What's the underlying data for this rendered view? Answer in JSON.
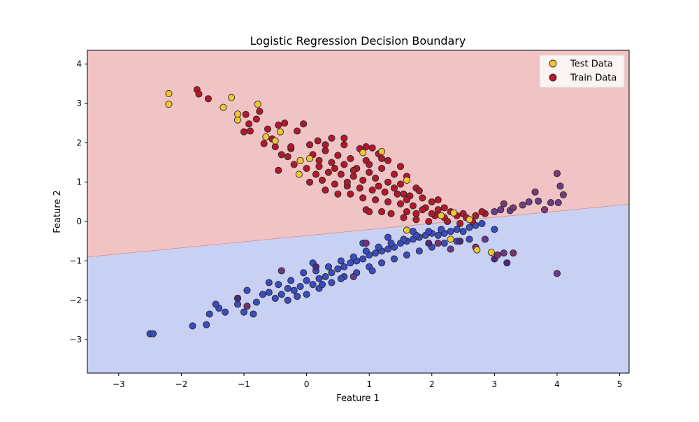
{
  "chart_data": {
    "type": "scatter",
    "title": "Logistic Regression Decision Boundary",
    "xlabel": "Feature 1",
    "ylabel": "Feature 2",
    "xlim": [
      -3.5,
      5.15
    ],
    "ylim": [
      -3.85,
      4.35
    ],
    "xticks": [
      -3,
      -2,
      -1,
      0,
      1,
      2,
      3,
      4,
      5
    ],
    "yticks": [
      -3,
      -2,
      -1,
      0,
      1,
      2,
      3,
      4
    ],
    "grid": false,
    "legend_position": "top-right",
    "legend": [
      {
        "label": "Test Data",
        "color": "#f5c431"
      },
      {
        "label": "Train Data",
        "color": "#b2182b"
      }
    ],
    "decision_boundary": {
      "points": [
        [
          -3.5,
          -0.9
        ],
        [
          5.15,
          0.44
        ]
      ],
      "upper_region_color": "#f0c4c4",
      "lower_region_color": "#c8d1f3",
      "upper_class_color": "#b2182b",
      "lower_class_color": "#3b4cc0"
    },
    "series": [
      {
        "name": "Test Data",
        "color": "#f5c431",
        "points": [
          [
            -2.2,
            3.25
          ],
          [
            -2.2,
            2.98
          ],
          [
            -1.2,
            3.15
          ],
          [
            -1.33,
            2.9
          ],
          [
            -0.78,
            2.98
          ],
          [
            -1.1,
            2.58
          ],
          [
            -1.1,
            2.73
          ],
          [
            -0.65,
            2.15
          ],
          [
            -0.42,
            2.28
          ],
          [
            -0.5,
            2.05
          ],
          [
            -0.1,
            1.55
          ],
          [
            -0.12,
            1.2
          ],
          [
            0.05,
            1.6
          ],
          [
            0.9,
            1.75
          ],
          [
            1.2,
            1.78
          ],
          [
            1.6,
            1.05
          ],
          [
            2.15,
            0.15
          ],
          [
            2.35,
            0.22
          ],
          [
            2.6,
            0.05
          ],
          [
            1.6,
            -0.22
          ],
          [
            2.3,
            -0.45
          ],
          [
            2.72,
            -0.72
          ],
          [
            2.95,
            -0.78
          ]
        ]
      },
      {
        "name": "Train Data",
        "color": "#b2182b",
        "points": [
          [
            -1.75,
            3.35
          ],
          [
            -1.72,
            3.24
          ],
          [
            -1.57,
            3.12
          ],
          [
            -0.75,
            2.8
          ],
          [
            -0.97,
            2.72
          ],
          [
            -0.8,
            2.6
          ],
          [
            -0.92,
            2.48
          ],
          [
            -0.62,
            2.35
          ],
          [
            -0.45,
            2.45
          ],
          [
            -0.35,
            2.5
          ],
          [
            -0.05,
            2.48
          ],
          [
            -0.9,
            2.3
          ],
          [
            -1.0,
            2.28
          ],
          [
            -0.68,
            1.98
          ],
          [
            -0.5,
            1.9
          ],
          [
            -0.25,
            1.85
          ],
          [
            0.05,
            1.95
          ],
          [
            0.18,
            2.05
          ],
          [
            0.4,
            2.12
          ],
          [
            0.6,
            1.95
          ],
          [
            0.85,
            1.85
          ],
          [
            1.05,
            1.87
          ],
          [
            1.15,
            1.72
          ],
          [
            -0.4,
            1.7
          ],
          [
            -0.3,
            1.65
          ],
          [
            0.1,
            1.7
          ],
          [
            0.3,
            1.8
          ],
          [
            0.5,
            1.68
          ],
          [
            0.7,
            1.6
          ],
          [
            0.95,
            1.55
          ],
          [
            1.3,
            1.55
          ],
          [
            1.5,
            1.4
          ],
          [
            -0.2,
            1.45
          ],
          [
            0.0,
            1.35
          ],
          [
            0.2,
            1.4
          ],
          [
            0.4,
            1.5
          ],
          [
            0.6,
            1.45
          ],
          [
            0.8,
            1.35
          ],
          [
            1.0,
            1.25
          ],
          [
            1.2,
            1.35
          ],
          [
            1.4,
            1.2
          ],
          [
            1.6,
            1.15
          ],
          [
            -0.45,
            1.3
          ],
          [
            0.15,
            1.2
          ],
          [
            0.35,
            1.25
          ],
          [
            0.55,
            1.2
          ],
          [
            0.75,
            1.15
          ],
          [
            0.9,
            1.05
          ],
          [
            1.1,
            1.1
          ],
          [
            1.3,
            1.0
          ],
          [
            1.5,
            0.95
          ],
          [
            1.75,
            0.85
          ],
          [
            0.05,
            1.0
          ],
          [
            0.25,
            1.05
          ],
          [
            0.45,
            0.95
          ],
          [
            0.65,
            0.9
          ],
          [
            0.85,
            0.85
          ],
          [
            1.05,
            0.8
          ],
          [
            1.25,
            0.75
          ],
          [
            1.45,
            0.7
          ],
          [
            1.65,
            0.65
          ],
          [
            1.85,
            0.6
          ],
          [
            2.0,
            0.5
          ],
          [
            0.3,
            0.8
          ],
          [
            0.5,
            0.7
          ],
          [
            0.7,
            0.7
          ],
          [
            0.9,
            0.6
          ],
          [
            1.1,
            0.55
          ],
          [
            1.3,
            0.5
          ],
          [
            1.5,
            0.45
          ],
          [
            1.7,
            0.4
          ],
          [
            1.9,
            0.35
          ],
          [
            2.1,
            0.3
          ],
          [
            2.3,
            0.25
          ],
          [
            2.5,
            0.2
          ],
          [
            2.7,
            0.15
          ],
          [
            0.95,
            0.3
          ],
          [
            1.0,
            0.25
          ],
          [
            1.2,
            0.25
          ],
          [
            1.35,
            0.2
          ],
          [
            1.55,
            0.1
          ],
          [
            1.75,
            0.05
          ],
          [
            1.95,
            0.0
          ],
          [
            2.2,
            0.1
          ],
          [
            2.45,
            -0.05
          ],
          [
            2.65,
            0.0
          ],
          [
            2.85,
            0.2
          ],
          [
            1.6,
            0.25
          ],
          [
            1.85,
            0.3
          ],
          [
            2.05,
            0.15
          ],
          [
            2.25,
            0.0
          ],
          [
            1.55,
            0.7
          ],
          [
            1.8,
            0.78
          ],
          [
            2.1,
            0.55
          ],
          [
            1.4,
            0.85
          ],
          [
            1.2,
            1.6
          ],
          [
            0.95,
            1.9
          ],
          [
            0.6,
            2.12
          ],
          [
            0.3,
            1.95
          ],
          [
            -0.15,
            2.3
          ],
          [
            -0.55,
            2.1
          ],
          [
            -0.25,
            1.9
          ],
          [
            0.2,
            1.55
          ],
          [
            0.45,
            1.35
          ],
          [
            0.75,
            1.3
          ],
          [
            1.0,
            1.45
          ],
          [
            0.65,
            1.0
          ],
          [
            1.15,
            0.9
          ],
          [
            1.6,
            0.55
          ],
          [
            2.2,
            0.35
          ],
          [
            2.55,
            0.1
          ],
          [
            2.0,
            0.2
          ],
          [
            1.75,
            0.2
          ],
          [
            2.4,
            0.15
          ],
          [
            2.8,
            0.25
          ]
        ]
      }
    ],
    "upper_region_points": [
      [
        3.0,
        0.25
      ],
      [
        3.15,
        0.45
      ],
      [
        3.25,
        0.28
      ],
      [
        3.45,
        0.42
      ],
      [
        3.55,
        0.5
      ],
      [
        3.65,
        0.75
      ],
      [
        3.7,
        0.52
      ],
      [
        3.8,
        0.3
      ],
      [
        3.9,
        0.48
      ],
      [
        4.0,
        1.22
      ],
      [
        4.05,
        0.9
      ],
      [
        4.1,
        0.68
      ],
      [
        4.02,
        0.48
      ],
      [
        3.3,
        0.35
      ],
      [
        3.1,
        0.3
      ]
    ],
    "lower_region_points": [
      [
        -2.5,
        -2.85
      ],
      [
        -2.45,
        -2.85
      ],
      [
        -1.82,
        -2.65
      ],
      [
        -1.6,
        -2.62
      ],
      [
        -1.55,
        -2.35
      ],
      [
        -1.4,
        -2.2
      ],
      [
        -1.3,
        -2.3
      ],
      [
        -1.45,
        -2.1
      ],
      [
        -1.1,
        -2.1
      ],
      [
        -1.0,
        -2.3
      ],
      [
        -0.85,
        -2.35
      ],
      [
        -1.1,
        -1.95
      ],
      [
        -0.95,
        -1.75
      ],
      [
        -0.8,
        -2.05
      ],
      [
        -0.7,
        -1.85
      ],
      [
        -0.6,
        -1.8
      ],
      [
        -0.5,
        -1.95
      ],
      [
        -0.4,
        -1.85
      ],
      [
        -0.3,
        -1.7
      ],
      [
        -0.2,
        -1.75
      ],
      [
        -0.1,
        -1.65
      ],
      [
        0.0,
        -1.5
      ],
      [
        0.1,
        -1.6
      ],
      [
        0.2,
        -1.45
      ],
      [
        0.3,
        -1.4
      ],
      [
        0.4,
        -1.3
      ],
      [
        0.5,
        -1.2
      ],
      [
        0.6,
        -1.15
      ],
      [
        0.7,
        -1.05
      ],
      [
        0.8,
        -1.0
      ],
      [
        0.9,
        -0.95
      ],
      [
        1.0,
        -0.85
      ],
      [
        1.1,
        -0.8
      ],
      [
        1.2,
        -0.75
      ],
      [
        1.3,
        -0.7
      ],
      [
        1.4,
        -0.65
      ],
      [
        1.5,
        -0.55
      ],
      [
        1.6,
        -0.5
      ],
      [
        1.7,
        -0.45
      ],
      [
        1.8,
        -0.4
      ],
      [
        1.9,
        -0.35
      ],
      [
        2.0,
        -0.3
      ],
      [
        2.1,
        -0.35
      ],
      [
        2.2,
        -0.3
      ],
      [
        2.3,
        -0.25
      ],
      [
        2.4,
        -0.2
      ],
      [
        2.5,
        -0.25
      ],
      [
        2.6,
        -0.15
      ],
      [
        2.7,
        -0.1
      ],
      [
        2.8,
        -0.05
      ],
      [
        -0.6,
        -1.55
      ],
      [
        -0.45,
        -1.6
      ],
      [
        -0.25,
        -1.5
      ],
      [
        -0.05,
        -1.3
      ],
      [
        0.15,
        -1.25
      ],
      [
        0.35,
        -1.15
      ],
      [
        0.55,
        -1.0
      ],
      [
        0.75,
        -0.9
      ],
      [
        0.95,
        -0.75
      ],
      [
        1.15,
        -0.65
      ],
      [
        1.35,
        -0.55
      ],
      [
        1.55,
        -0.45
      ],
      [
        1.75,
        -0.35
      ],
      [
        1.95,
        -0.25
      ],
      [
        2.15,
        -0.2
      ],
      [
        0.0,
        -1.85
      ],
      [
        0.2,
        -1.7
      ],
      [
        0.4,
        -1.55
      ],
      [
        0.6,
        -1.4
      ],
      [
        0.8,
        -1.3
      ],
      [
        1.0,
        -1.15
      ],
      [
        1.2,
        -1.05
      ],
      [
        1.4,
        -0.95
      ],
      [
        1.6,
        -0.85
      ],
      [
        1.8,
        -0.75
      ],
      [
        2.0,
        -0.65
      ],
      [
        2.2,
        -0.55
      ],
      [
        2.4,
        -0.5
      ],
      [
        2.6,
        -0.45
      ],
      [
        3.0,
        -0.2
      ],
      [
        0.9,
        -0.55
      ],
      [
        1.3,
        -0.4
      ],
      [
        1.7,
        -0.25
      ],
      [
        0.1,
        -1.05
      ],
      [
        -0.4,
        -1.25
      ],
      [
        0.55,
        -1.45
      ],
      [
        0.25,
        -1.6
      ],
      [
        -0.15,
        -1.9
      ],
      [
        -0.3,
        -2.0
      ],
      [
        1.05,
        -1.25
      ]
    ],
    "misclassified_points": [
      [
        -1.1,
        -1.95
      ],
      [
        -0.95,
        -2.15
      ],
      [
        -0.4,
        -1.25
      ],
      [
        0.15,
        -1.15
      ],
      [
        0.95,
        -0.55
      ],
      [
        0.75,
        -1.4
      ],
      [
        1.95,
        -0.55
      ],
      [
        2.1,
        -0.55
      ],
      [
        2.3,
        -0.7
      ],
      [
        2.45,
        -0.5
      ],
      [
        2.7,
        -0.65
      ],
      [
        2.85,
        -0.45
      ],
      [
        3.0,
        -0.95
      ],
      [
        3.05,
        -0.85
      ],
      [
        3.15,
        -0.8
      ],
      [
        3.2,
        -1.05
      ],
      [
        3.3,
        -0.8
      ],
      [
        4.0,
        -1.32
      ]
    ]
  }
}
